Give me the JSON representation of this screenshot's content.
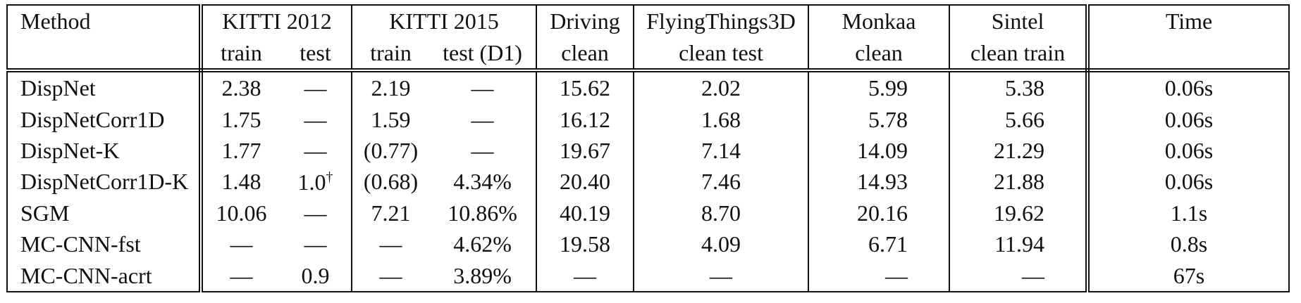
{
  "header": {
    "method": "Method",
    "groups": [
      {
        "name": "KITTI 2012",
        "subs": [
          "train",
          "test"
        ]
      },
      {
        "name": "KITTI 2015",
        "subs": [
          "train",
          "test (D1)"
        ]
      },
      {
        "name": "Driving",
        "subs": [
          "clean"
        ]
      },
      {
        "name": "FlyingThings3D",
        "subs": [
          "clean test"
        ]
      },
      {
        "name": "Monkaa",
        "subs": [
          "clean"
        ]
      },
      {
        "name": "Sintel",
        "subs": [
          "clean train"
        ]
      }
    ],
    "time": "Time"
  },
  "rows": [
    {
      "method": "DispNet",
      "values": [
        "2.38",
        "—",
        "2.19",
        "—",
        "15.62",
        "2.02",
        "5.99",
        "5.38"
      ],
      "time": "0.06s"
    },
    {
      "method": "DispNetCorr1D",
      "values": [
        "1.75",
        "—",
        "1.59",
        "—",
        "16.12",
        "1.68",
        "5.78",
        "5.66"
      ],
      "time": "0.06s"
    },
    {
      "method": "DispNet-K",
      "values": [
        "1.77",
        "—",
        "(0.77)",
        "—",
        "19.67",
        "7.14",
        "14.09",
        "21.29"
      ],
      "time": "0.06s"
    },
    {
      "method": "DispNetCorr1D-K",
      "values": [
        "1.48",
        "1.0",
        "(0.68)",
        "4.34%",
        "20.40",
        "7.46",
        "14.93",
        "21.88"
      ],
      "time": "0.06s",
      "dagger_col": 1,
      "dagger": "†"
    },
    {
      "method": "SGM",
      "values": [
        "10.06",
        "—",
        "7.21",
        "10.86%",
        "40.19",
        "8.70",
        "20.16",
        "19.62"
      ],
      "time": "1.1s"
    },
    {
      "method": "MC-CNN-fst",
      "values": [
        "—",
        "—",
        "—",
        "4.62%",
        "19.58",
        "4.09",
        "6.71",
        "11.94"
      ],
      "time": "0.8s"
    },
    {
      "method": "MC-CNN-acrt",
      "values": [
        "—",
        "0.9",
        "—",
        "3.89%",
        "—",
        "—",
        "—",
        "—"
      ],
      "time": "67s"
    }
  ]
}
